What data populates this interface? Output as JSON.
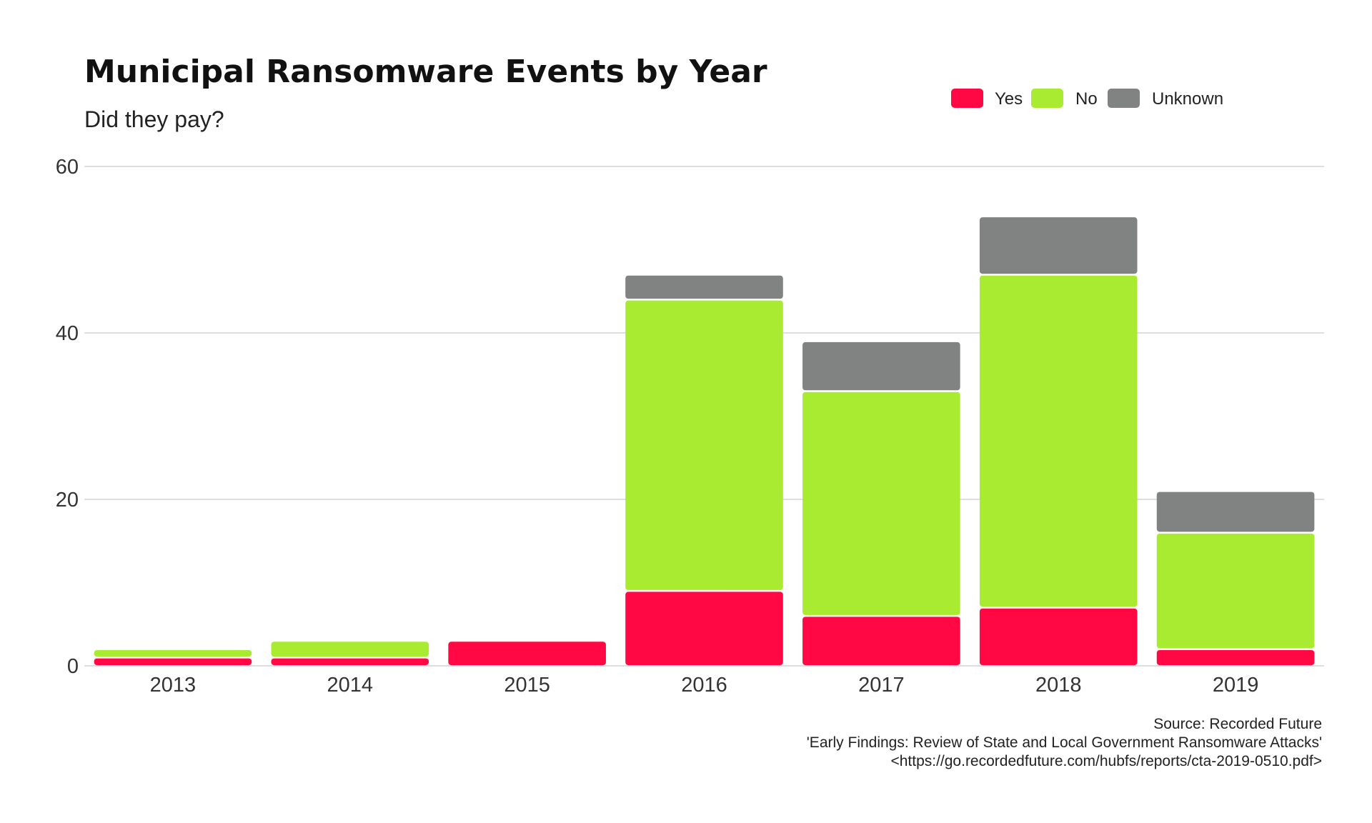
{
  "colors": {
    "Yes": "#ff0844",
    "No": "#a8eb30",
    "Unknown": "#808382"
  },
  "chart_data": {
    "type": "bar",
    "stacked": true,
    "title": "Municipal Ransomware Events by Year",
    "subtitle": "Did they pay?",
    "xlabel": "",
    "ylabel": "",
    "categories": [
      "2013",
      "2014",
      "2015",
      "2016",
      "2017",
      "2018",
      "2019"
    ],
    "series": [
      {
        "name": "Yes",
        "values": [
          1,
          1,
          3,
          9,
          6,
          7,
          2
        ]
      },
      {
        "name": "No",
        "values": [
          1,
          2,
          0,
          35,
          27,
          40,
          14
        ]
      },
      {
        "name": "Unknown",
        "values": [
          0,
          0,
          0,
          3,
          6,
          7,
          5
        ]
      }
    ],
    "ylim": [
      0,
      60
    ],
    "yticks": [
      "0",
      "20",
      "40",
      "60"
    ],
    "grid": "horizontal",
    "legend_position": "top-right",
    "caption": [
      "Source: Recorded Future",
      "'Early Findings: Review of State and Local Government Ransomware Attacks'",
      "<https://go.recordedfuture.com/hubfs/reports/cta-2019-0510.pdf>"
    ]
  }
}
